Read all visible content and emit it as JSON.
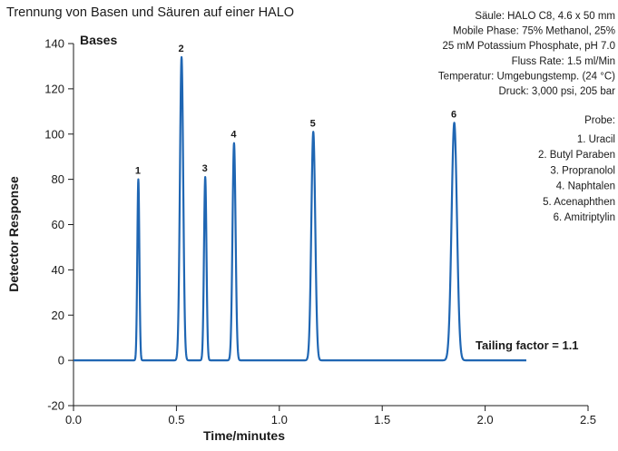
{
  "chart_data": {
    "type": "line",
    "title": "Trennung von Basen und Säuren auf einer HALO",
    "panel_label": "Bases",
    "xlabel": "Time/minutes",
    "ylabel": "Detector Response",
    "xlim": [
      0,
      2.5
    ],
    "ylim": [
      -20,
      140
    ],
    "x_ticks": [
      "0.0",
      "0.5",
      "1.0",
      "1.5",
      "2.0",
      "2.5"
    ],
    "y_ticks": [
      "-20",
      "0",
      "20",
      "40",
      "60",
      "80",
      "100",
      "120",
      "140"
    ],
    "grid": false,
    "series_color": "#1f66b3",
    "trace_end": 2.2,
    "peaks": [
      {
        "label": "1",
        "x": 0.315,
        "y": 80,
        "width": 0.005
      },
      {
        "label": "2",
        "x": 0.525,
        "y": 134,
        "width": 0.008
      },
      {
        "label": "3",
        "x": 0.64,
        "y": 81,
        "width": 0.006
      },
      {
        "label": "4",
        "x": 0.78,
        "y": 96,
        "width": 0.0075
      },
      {
        "label": "5",
        "x": 1.165,
        "y": 101,
        "width": 0.0095
      },
      {
        "label": "6",
        "x": 1.85,
        "y": 105,
        "width": 0.013
      }
    ],
    "conditions": [
      "Säule: HALO C8, 4.6 x 50 mm",
      "Mobile Phase: 75% Methanol, 25%",
      "25 mM Potassium Phosphate, pH 7.0",
      "Fluss Rate: 1.5 ml/Min",
      "Temperatur: Umgebungstemp. (24 °C)",
      "Druck: 3,000 psi, 205 bar"
    ],
    "sample_title": "Probe:",
    "sample_list": [
      "1. Uracil",
      "2. Butyl Paraben",
      "3. Propranolol",
      "4. Naphtalen",
      "5. Acenaphthen",
      "6. Amitriptylin"
    ],
    "annotation": "Tailing factor = 1.1"
  }
}
